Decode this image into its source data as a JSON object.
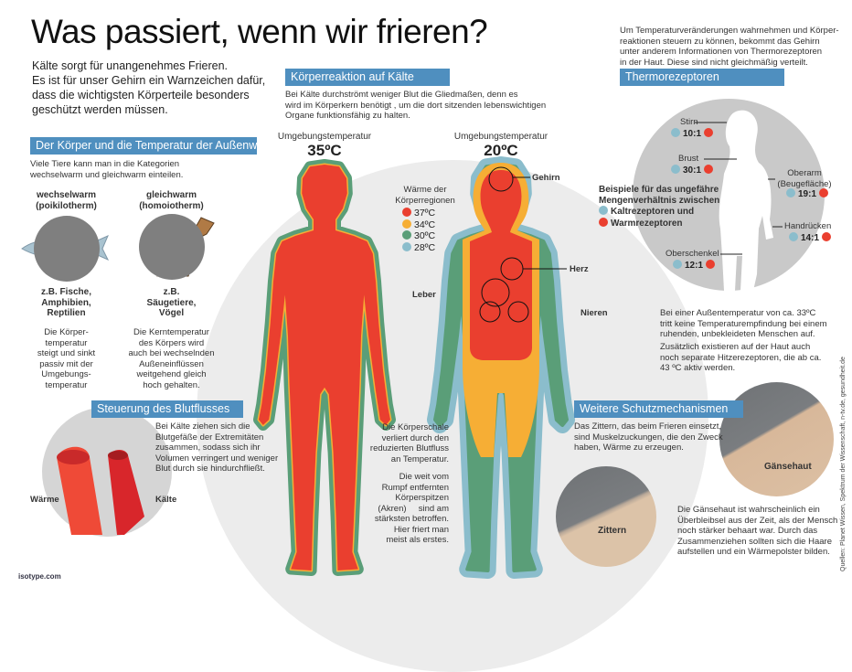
{
  "title": "Was passiert, wenn wir frieren?",
  "intro": [
    "Kälte sorgt für unangenehmes Frieren.",
    "Es ist für unser Gehirn ein Warnzeichen dafür,",
    "dass die wichtigsten Körperteile besonders",
    "geschützt werden müssen."
  ],
  "colors": {
    "header": "#4f8fbf",
    "red": "#ea3f2f",
    "yellow": "#f6ae35",
    "green": "#5a9e78",
    "blue": "#8bbdcc"
  },
  "koerper_temp": {
    "header": "Der Körper und die Temperatur der Außenwelt",
    "text": [
      "Viele Tiere kann man in die Kategorien",
      "wechselwarm und gleichwarm einteilen."
    ],
    "left": {
      "title": [
        "wechselwarm",
        "(poikilotherm)"
      ],
      "image": "fish",
      "examples": [
        "z.B. Fische,",
        "Amphibien,",
        "Reptilien"
      ],
      "desc": [
        "Die Körper-",
        "temperatur",
        "steigt und sinkt",
        "passiv mit der",
        "Umgebungs-",
        "temperatur"
      ]
    },
    "right": {
      "title": [
        "gleichwarm",
        "(homoiotherm)"
      ],
      "image": "dog",
      "examples": [
        "z.B.",
        "Säugetiere,",
        "Vögel"
      ],
      "desc": [
        "Die Kerntemperatur",
        "des Körpers wird",
        "auch bei wechselnden",
        "Außeneinflüssen",
        "weitgehend gleich",
        "hoch gehalten."
      ]
    }
  },
  "reaktion": {
    "header": "Körperreaktion auf Kälte",
    "text": [
      "Bei Kälte durchströmt weniger Blut die Gliedmaßen, denn es",
      "wird im Körperkern benötigt , um die dort sitzenden lebenswichtigen",
      "Organe funktionsfähig zu halten."
    ],
    "env_label": "Umgebungstemperatur",
    "temp_left": "35ºC",
    "temp_right": "20ºC",
    "legend_title": [
      "Wärme der",
      "Körperregionen"
    ],
    "legend": [
      {
        "label": "37ºC",
        "color": "#ea3f2f"
      },
      {
        "label": "34ºC",
        "color": "#f6ae35"
      },
      {
        "label": "30ºC",
        "color": "#5a9e78"
      },
      {
        "label": "28ºC",
        "color": "#8bbdcc"
      }
    ],
    "organs": {
      "brain": "Gehirn",
      "heart": "Herz",
      "liver": "Leber",
      "kidneys": "Nieren"
    },
    "shell_text": [
      "Die Körperschale",
      "verliert durch den",
      "reduzierten Blutfluss",
      "an Temperatur."
    ],
    "akren_text": [
      "Die weit vom",
      "Rumpf entfernten",
      "Körperspitzen",
      "(Akren)     sind am",
      "stärksten betroffen.",
      "Hier friert man",
      "meist als erstes."
    ]
  },
  "blutfluss": {
    "header": "Steuerung des Blutflusses",
    "text": [
      "Bei Kälte ziehen sich die",
      "Blutgefäße der Extremitäten",
      "zusammen, sodass sich ihr",
      "Volumen verringert und weniger",
      "Blut durch sie hindurchfließt."
    ],
    "warm": "Wärme",
    "cold": "Kälte"
  },
  "thermo": {
    "intro": [
      "Um Temperaturveränderungen wahrnehmen und Körper-",
      "reaktionen steuern zu können, bekommt das Gehirn",
      "unter anderem Informationen von Thermorezeptoren",
      "in der Haut. Diese sind nicht gleichmäßig verteilt."
    ],
    "header": "Thermorezeptoren",
    "legend": [
      "Beispiele für das ungefähre",
      "Mengenverhältnis zwischen"
    ],
    "cold_label": "Kaltrezeptoren und",
    "warm_label": "Warmrezeptoren",
    "regions": [
      {
        "name": "Stirn",
        "ratio": "10:1"
      },
      {
        "name": "Brust",
        "ratio": "30:1"
      },
      {
        "name": "Oberarm (Beugefläche)",
        "ratio": "19:1"
      },
      {
        "name": "Handrücken",
        "ratio": "14:1"
      },
      {
        "name": "Oberschenkel",
        "ratio": "12:1"
      }
    ],
    "note1": [
      "Bei einer Außentemperatur von ca. 33ºC",
      "tritt keine Temperaturempfindung bei einem",
      "ruhenden, unbekleideten Menschen auf."
    ],
    "note2": [
      "Zusätzlich existieren auf der Haut auch",
      "noch separate Hitzerezeptoren, die ab ca.",
      "43 ºC aktiv werden."
    ]
  },
  "schutz": {
    "header": "Weitere Schutzmechanismen",
    "text": [
      "Das Zittern, das beim Frieren einsetzt,",
      "sind Muskelzuckungen, die den Zweck",
      "haben, Wärme zu erzeugen."
    ],
    "goose": "Gänsehaut",
    "shiver": "Zittern",
    "goose_text": [
      "Die Gänsehaut ist wahrscheinlich ein",
      "Überbleibsel aus der Zeit, als der Mensch",
      "noch stärker behaart war. Durch das",
      "Zusammenziehen sollten sich die Haare",
      "aufstellen und ein Wärmepolster bilden."
    ]
  },
  "source": "Quellen: Planet Wissen, Spektrum der Wissenschaft, n-tv.de, gesundheit.de",
  "logo": "isotype.com"
}
